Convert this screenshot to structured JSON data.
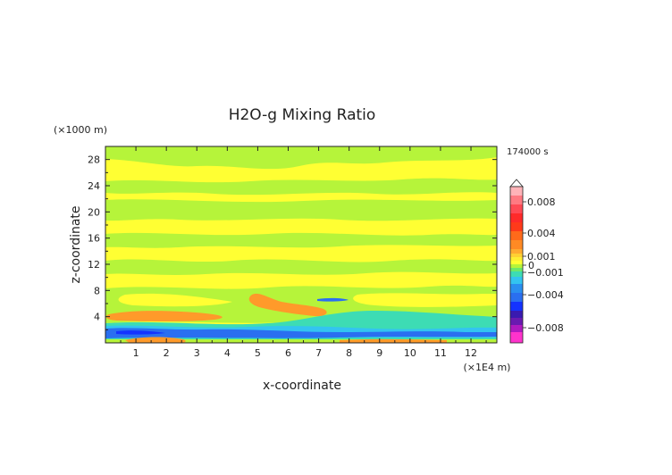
{
  "chart_data": {
    "type": "heatmap",
    "title": "H2O-g Mixing Ratio",
    "xlabel": "x-coordinate",
    "ylabel": "z-coordinate",
    "x_unit": "(×1E4 m)",
    "y_unit": "(×1000 m)",
    "time_label": "174000 s",
    "xlim": [
      0,
      12.85
    ],
    "ylim": [
      0,
      30
    ],
    "x_ticks": [
      "1",
      "2",
      "3",
      "4",
      "5",
      "6",
      "7",
      "8",
      "9",
      "10",
      "11",
      "12"
    ],
    "y_ticks": [
      "4",
      "8",
      "12",
      "16",
      "20",
      "24",
      "28"
    ],
    "legend_labels": [
      "0.008",
      "0.004",
      "0.001",
      "0",
      "-0.001",
      "-0.004",
      "-0.008"
    ],
    "colorbar_placement": "right",
    "background_color": "#ffff33",
    "colors": {
      "yellow": "#ffff33",
      "green": "#b6f43a",
      "teal": "#3ddcb4",
      "light_blue": "#33c4f0",
      "blue": "#2a6ff0",
      "dark_blue": "#1433ff",
      "orange": "#ff9a2a",
      "dark_orange": "#ff7a1a"
    }
  }
}
